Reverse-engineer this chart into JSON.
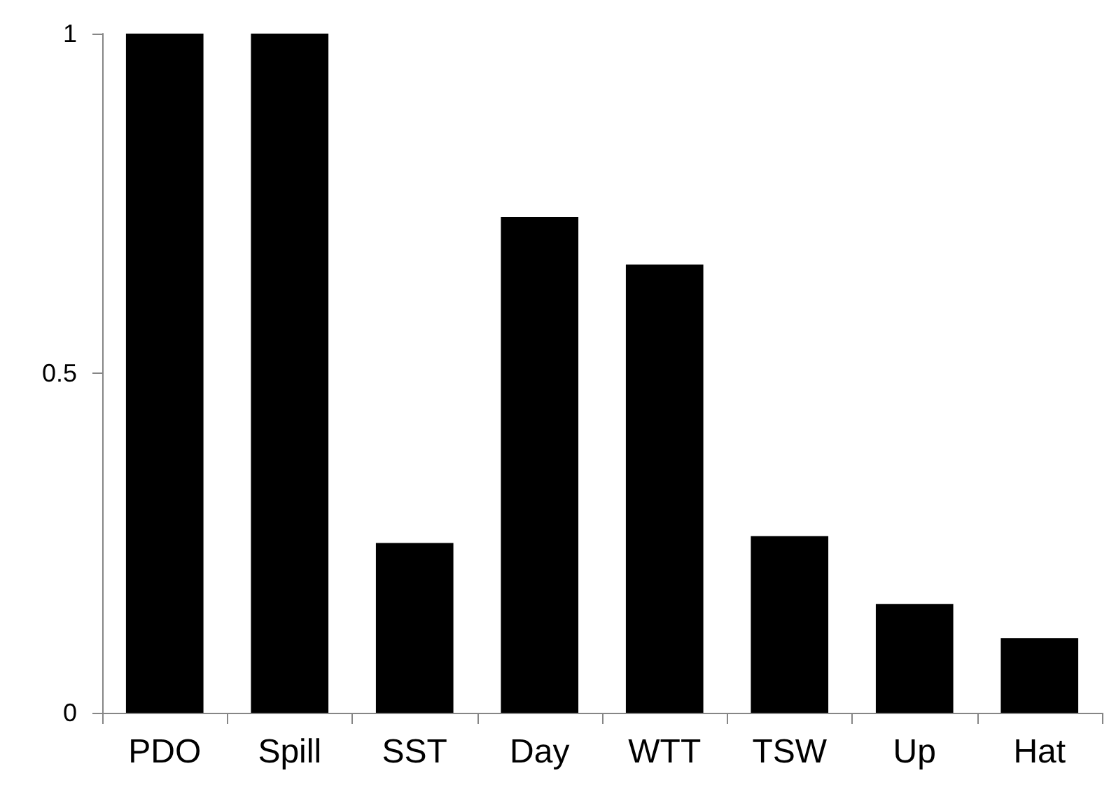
{
  "chart_data": {
    "type": "bar",
    "categories": [
      "PDO",
      "Spill",
      "SST",
      "Day",
      "WTT",
      "TSW",
      "Up",
      "Hat"
    ],
    "values": [
      1,
      1,
      0.25,
      0.73,
      0.66,
      0.26,
      0.16,
      0.11
    ],
    "color": "#000000",
    "ylim": [
      0,
      1
    ],
    "yticks": [
      0,
      0.5,
      1
    ],
    "grid": false
  }
}
